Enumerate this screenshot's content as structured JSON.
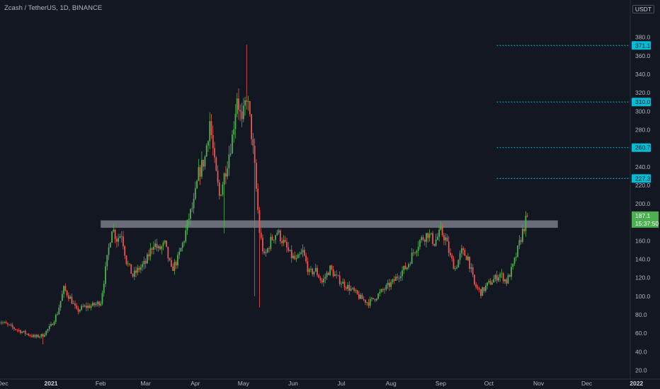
{
  "header": {
    "symbol_title": "Zcash / TetherUS, 1D, BINANCE",
    "currency": "USDT"
  },
  "colors": {
    "background": "#131722",
    "up": "#26a69a",
    "up_candle": "#4caf50",
    "down": "#ef5350",
    "target_line": "#00bcd4",
    "resistance_zone": "#b2b5be",
    "last_price_bg": "#4caf50"
  },
  "chart_data": {
    "type": "candlestick",
    "title": "Zcash / TetherUS, 1D, BINANCE",
    "interval": "1D",
    "exchange": "BINANCE",
    "currency": "USDT",
    "y_ticks": [
      "380.0",
      "360.0",
      "340.0",
      "320.0",
      "300.0",
      "280.0",
      "260.0",
      "240.0",
      "220.0",
      "200.0",
      "180.0",
      "160.0",
      "140.0",
      "120.0",
      "100.0",
      "80.0",
      "60.0",
      "40.0",
      "20.0"
    ],
    "y_tick_values": [
      380,
      360,
      340,
      320,
      300,
      280,
      260,
      240,
      220,
      200,
      180,
      160,
      140,
      120,
      100,
      80,
      60,
      40,
      20
    ],
    "ylim": [
      12,
      410
    ],
    "x_labels": [
      "Dec",
      "2021",
      "Feb",
      "Mar",
      "Apr",
      "May",
      "Jun",
      "Jul",
      "Aug",
      "Sep",
      "Oct",
      "Nov",
      "Dec",
      "2022"
    ],
    "x_label_days": [
      -30,
      0,
      31,
      59,
      90,
      120,
      151,
      181,
      212,
      243,
      273,
      304,
      334,
      365
    ],
    "xlim": [
      -33,
      370
    ],
    "target_lines": [
      {
        "label": "371.1",
        "value": 371.1
      },
      {
        "label": "310.0",
        "value": 310.0
      },
      {
        "label": "260.7",
        "value": 260.7
      },
      {
        "label": "227.3",
        "value": 227.3
      }
    ],
    "target_line_start_day": 278,
    "resistance_zone": {
      "low": 174,
      "high": 182,
      "start_day": 31,
      "end_day": 316
    },
    "last_price": {
      "label": "187.1",
      "value": 187.1,
      "countdown": "15:37:50"
    },
    "price_path": [
      {
        "day": -33,
        "close": 74
      },
      {
        "day": -24,
        "close": 66
      },
      {
        "day": -16,
        "close": 60
      },
      {
        "day": -10,
        "close": 56
      },
      {
        "day": -5,
        "close": 58
      },
      {
        "day": 0,
        "close": 68
      },
      {
        "day": 4,
        "close": 82
      },
      {
        "day": 8,
        "close": 108
      },
      {
        "day": 12,
        "close": 98
      },
      {
        "day": 16,
        "close": 84
      },
      {
        "day": 20,
        "close": 88
      },
      {
        "day": 26,
        "close": 90
      },
      {
        "day": 31,
        "close": 94
      },
      {
        "day": 35,
        "close": 140
      },
      {
        "day": 38,
        "close": 175
      },
      {
        "day": 41,
        "close": 162
      },
      {
        "day": 44,
        "close": 168
      },
      {
        "day": 47,
        "close": 138
      },
      {
        "day": 51,
        "close": 122
      },
      {
        "day": 55,
        "close": 130
      },
      {
        "day": 59,
        "close": 136
      },
      {
        "day": 64,
        "close": 158
      },
      {
        "day": 67,
        "close": 150
      },
      {
        "day": 71,
        "close": 156
      },
      {
        "day": 75,
        "close": 128
      },
      {
        "day": 79,
        "close": 140
      },
      {
        "day": 83,
        "close": 162
      },
      {
        "day": 86,
        "close": 185
      },
      {
        "day": 89,
        "close": 200
      },
      {
        "day": 92,
        "close": 232
      },
      {
        "day": 96,
        "close": 250
      },
      {
        "day": 99,
        "close": 290
      },
      {
        "day": 102,
        "close": 242
      },
      {
        "day": 105,
        "close": 208
      },
      {
        "day": 109,
        "close": 238
      },
      {
        "day": 113,
        "close": 272
      },
      {
        "day": 116,
        "close": 318
      },
      {
        "day": 119,
        "close": 285
      },
      {
        "day": 122,
        "close": 318
      },
      {
        "day": 125,
        "close": 276
      },
      {
        "day": 127,
        "close": 238
      },
      {
        "day": 130,
        "close": 170
      },
      {
        "day": 133,
        "close": 142
      },
      {
        "day": 137,
        "close": 160
      },
      {
        "day": 141,
        "close": 170
      },
      {
        "day": 145,
        "close": 158
      },
      {
        "day": 149,
        "close": 145
      },
      {
        "day": 153,
        "close": 138
      },
      {
        "day": 157,
        "close": 148
      },
      {
        "day": 161,
        "close": 125
      },
      {
        "day": 165,
        "close": 128
      },
      {
        "day": 169,
        "close": 115
      },
      {
        "day": 174,
        "close": 130
      },
      {
        "day": 178,
        "close": 120
      },
      {
        "day": 182,
        "close": 114
      },
      {
        "day": 188,
        "close": 106
      },
      {
        "day": 193,
        "close": 98
      },
      {
        "day": 198,
        "close": 93
      },
      {
        "day": 203,
        "close": 100
      },
      {
        "day": 208,
        "close": 108
      },
      {
        "day": 213,
        "close": 115
      },
      {
        "day": 218,
        "close": 126
      },
      {
        "day": 222,
        "close": 132
      },
      {
        "day": 226,
        "close": 148
      },
      {
        "day": 230,
        "close": 160
      },
      {
        "day": 235,
        "close": 168
      },
      {
        "day": 239,
        "close": 158
      },
      {
        "day": 243,
        "close": 170
      },
      {
        "day": 246,
        "close": 162
      },
      {
        "day": 249,
        "close": 142
      },
      {
        "day": 252,
        "close": 130
      },
      {
        "day": 256,
        "close": 148
      },
      {
        "day": 260,
        "close": 142
      },
      {
        "day": 264,
        "close": 112
      },
      {
        "day": 268,
        "close": 104
      },
      {
        "day": 272,
        "close": 112
      },
      {
        "day": 276,
        "close": 118
      },
      {
        "day": 280,
        "close": 124
      },
      {
        "day": 284,
        "close": 116
      },
      {
        "day": 288,
        "close": 132
      },
      {
        "day": 291,
        "close": 150
      },
      {
        "day": 294,
        "close": 170
      },
      {
        "day": 297,
        "close": 187.1
      }
    ]
  }
}
